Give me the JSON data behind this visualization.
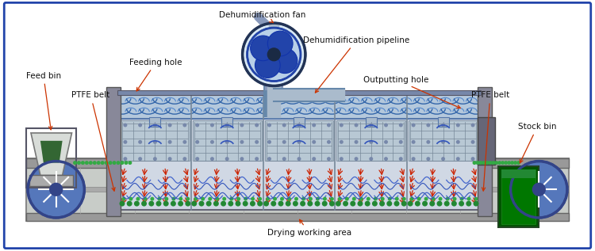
{
  "bg_color": "#ffffff",
  "labels": {
    "dehumidification_fan": "Dehumidification fan",
    "dehumidification_pipeline": "Dehumidification pipeline",
    "feeding_hole": "Feeding hole",
    "ptfe_belt_left": "PTFE belt",
    "feed_bin": "Feed bin",
    "outputting_hole": "Outputting hole",
    "ptfe_belt_right": "PTFE belt",
    "stock_bin": "Stock bin",
    "drying_working_area": "Drying working area"
  },
  "colors": {
    "machine_fill": "#c8d4e0",
    "machine_edge": "#666677",
    "duct_fill": "#b0c4dc",
    "duct_edge": "#5577aa",
    "upper_panel_fill": "#b8c8d8",
    "conveyor_fill": "#d0d4d0",
    "conveyor_edge": "#888888",
    "roller_fill": "#5577bb",
    "roller_edge": "#334488",
    "feed_bin_fill": "#dde0dc",
    "stock_bin_fill": "#007700",
    "stock_bin_edge": "#005500",
    "fan_fill": "#c8ddf0",
    "fan_edge": "#4477aa",
    "fan_dark": "#223366",
    "pipe_fill": "#aabbcc",
    "pipe_edge": "#5577aa",
    "red_arrow": "#cc2200",
    "blue_wave": "#3355bb",
    "green_dots": "#228833",
    "annotation_line": "#cc3300",
    "frame_color": "#2244aa",
    "section_divider": "#778899",
    "white": "#ffffff",
    "gray_mid": "#aaaaaa"
  }
}
